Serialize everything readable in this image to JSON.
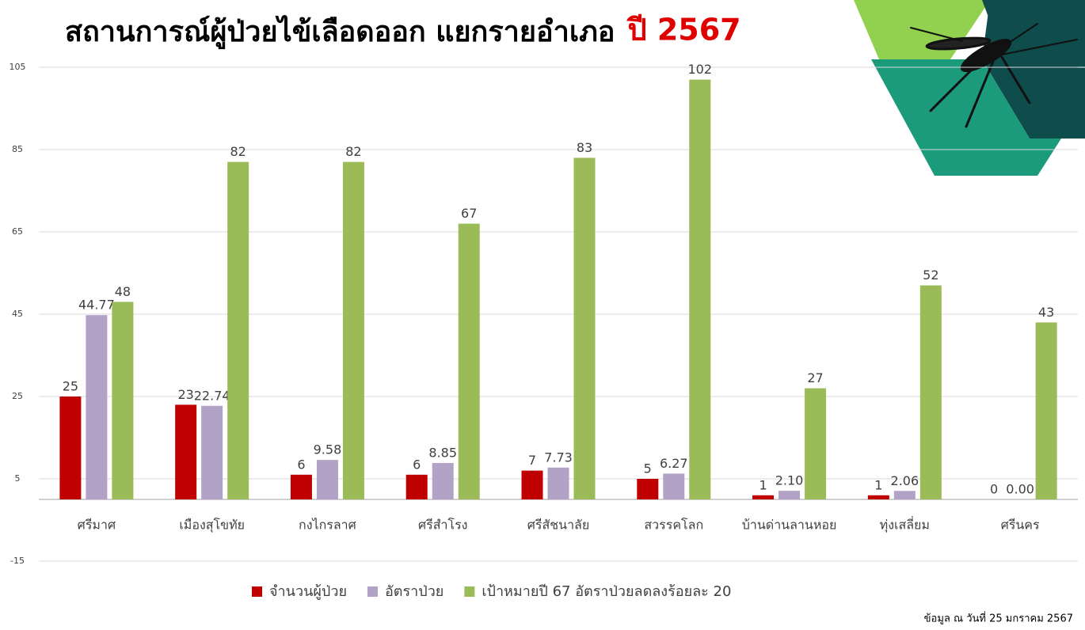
{
  "chart_data": {
    "type": "bar",
    "title": "สถานการณ์ผู้ป่วยไข้เลือดออก แยกรายอำเภอ",
    "subtitle": "ปี 2567",
    "footnote": "ข้อมูล ณ วันที่ 25 มกราคม 2567",
    "categories": [
      "ศรีมาศ",
      "เมืองสุโขทัย",
      "กงไกรลาศ",
      "ศรีสำโรง",
      "ศรีสัชนาลัย",
      "สวรรคโลก",
      "บ้านด่านลานหอย",
      "ทุ่งเสลี่ยม",
      "ศรีนคร"
    ],
    "series": [
      {
        "name": "จำนวนผู้ป่วย",
        "color": "#c00000",
        "values": [
          25,
          23,
          6,
          6,
          7,
          5,
          1,
          1,
          0
        ]
      },
      {
        "name": "อัตราป่วย",
        "color": "#b3a2c7",
        "values": [
          44.77,
          22.74,
          9.58,
          8.85,
          7.73,
          6.27,
          2.1,
          2.06,
          0
        ],
        "value_labels": [
          "44.77",
          "22.74",
          "9.58",
          "8.85",
          "7.73",
          "6.27",
          "2.10",
          "2.06",
          "0.00"
        ]
      },
      {
        "name": "เป้าหมายปี 67 อัตราป่วยลดลงร้อยละ 20",
        "color": "#9bbb59",
        "values": [
          48,
          82,
          82,
          67,
          83,
          102,
          27,
          52,
          43
        ]
      }
    ],
    "ylim": [
      -15,
      105
    ],
    "yticks": [
      -15,
      5,
      25,
      45,
      65,
      85,
      105
    ],
    "grid": true
  }
}
